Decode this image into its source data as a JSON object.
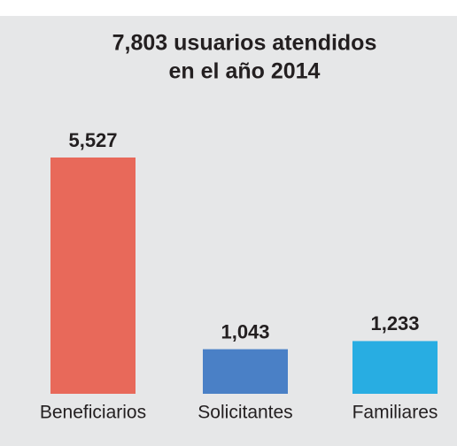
{
  "chart_data": {
    "type": "bar",
    "title": [
      "7,803 usuarios atendidos",
      "en el año 2014"
    ],
    "categories": [
      "Beneficiarios",
      "Solicitantes",
      "Familiares"
    ],
    "values": [
      5527,
      1043,
      1233
    ],
    "value_labels": [
      "5,527",
      "1,043",
      "1,233"
    ],
    "colors": [
      "#e8695a",
      "#4a80c6",
      "#28ade2"
    ]
  }
}
